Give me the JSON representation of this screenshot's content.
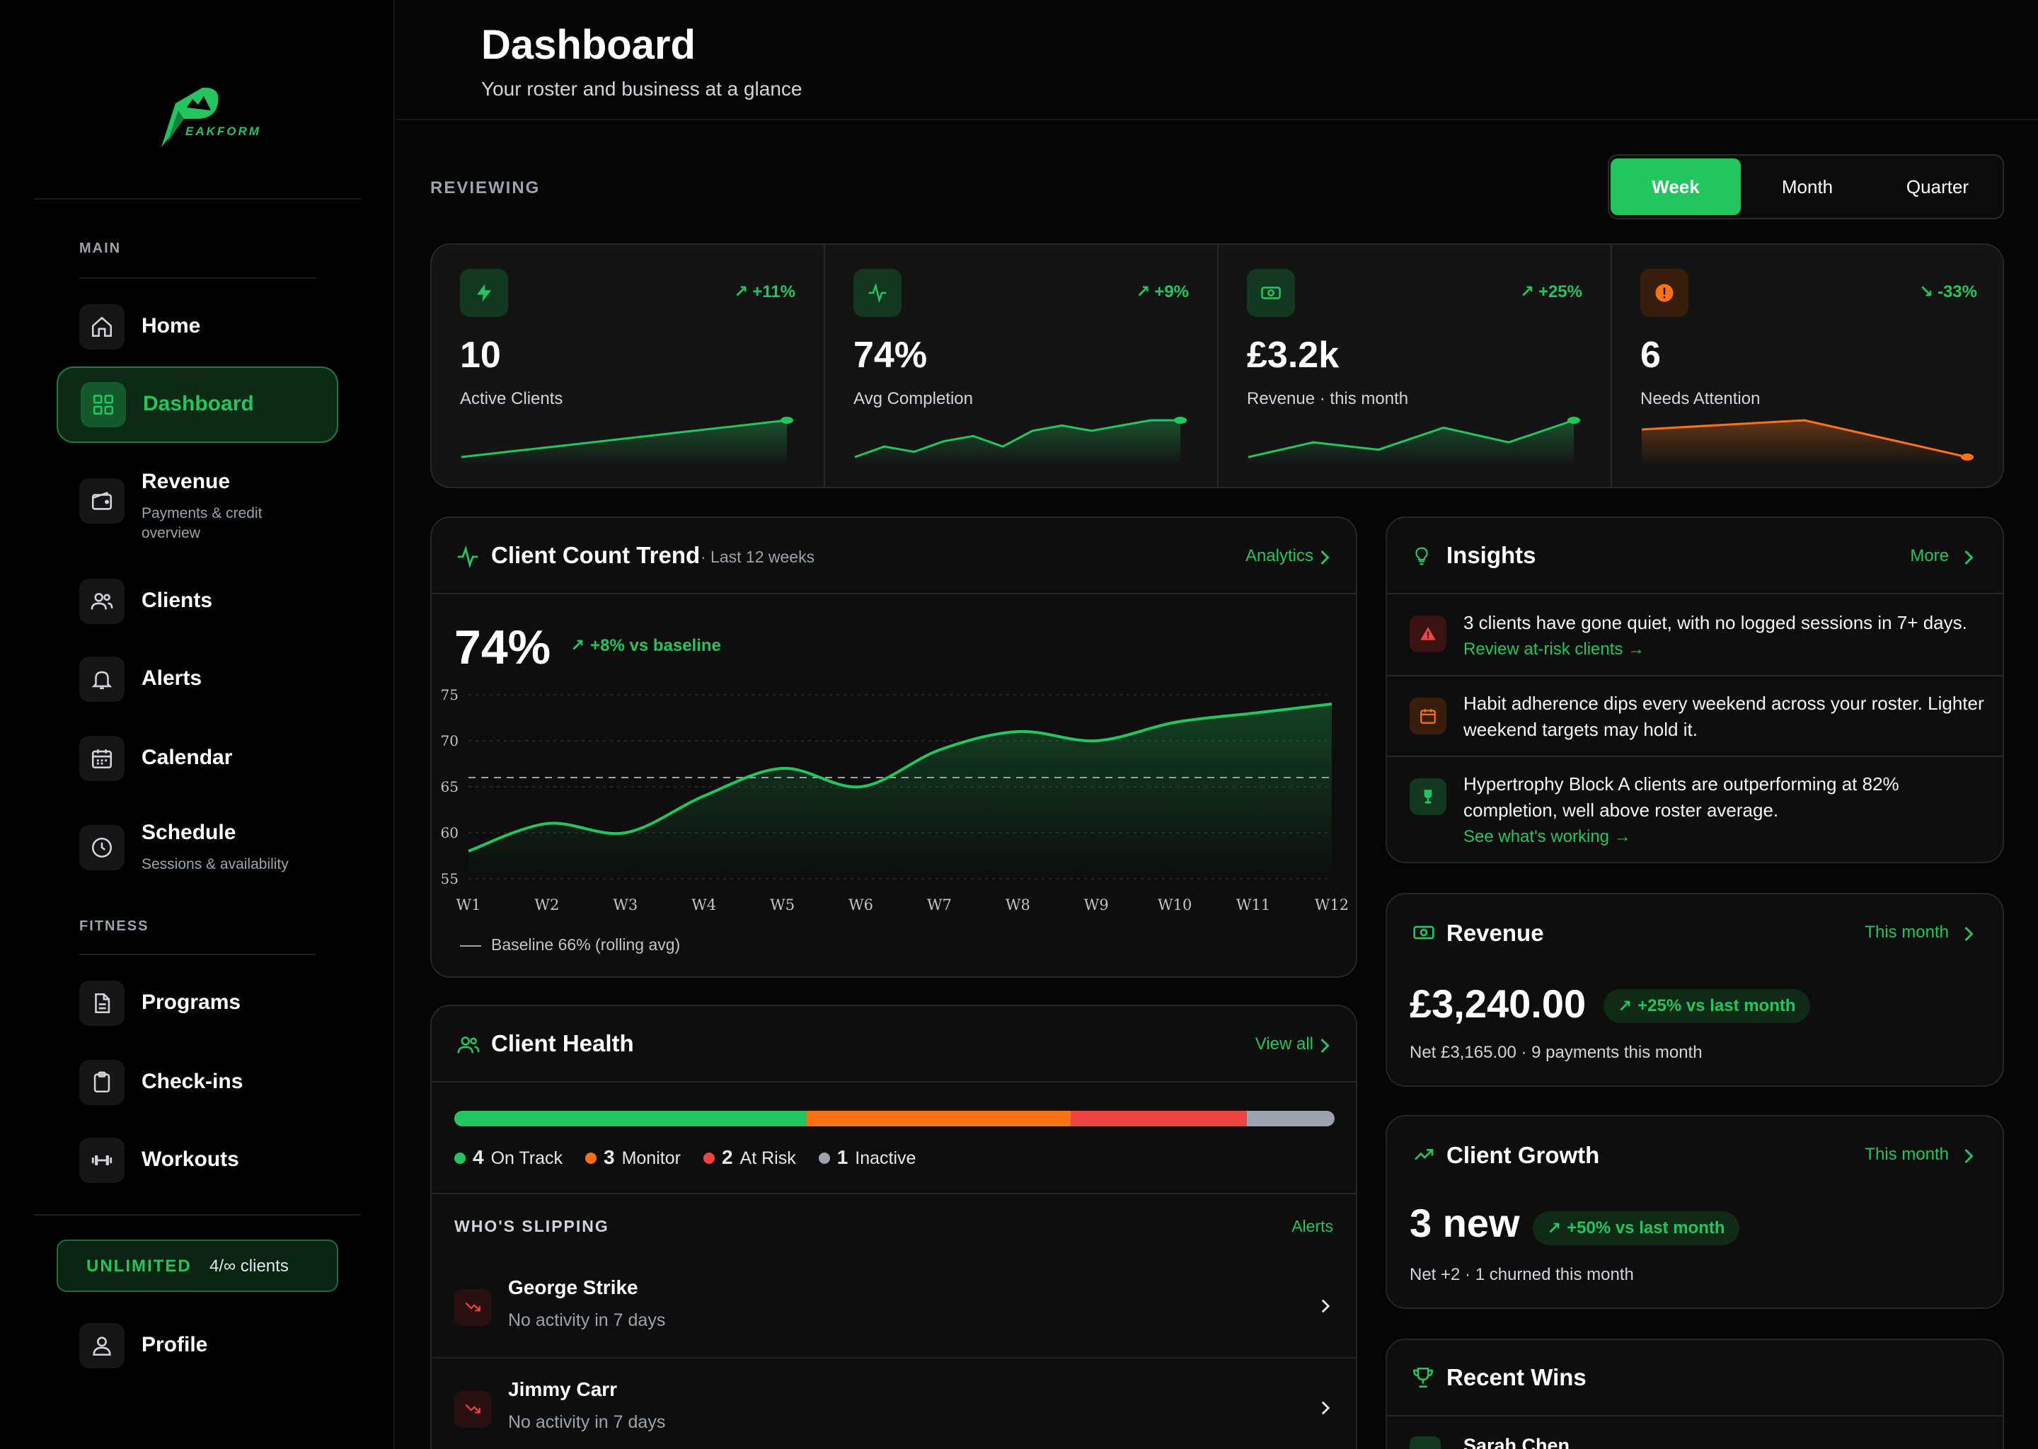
{
  "brand": {
    "name": "EAKFORM",
    "color": "#22c55e"
  },
  "header": {
    "title": "Dashboard",
    "subtitle": "Your roster and business at a glance"
  },
  "sidebar": {
    "sections": [
      "MAIN",
      "FITNESS"
    ],
    "items": [
      {
        "label": "Home",
        "icon": "home-icon"
      },
      {
        "label": "Dashboard",
        "icon": "grid-icon",
        "active": true
      },
      {
        "label": "Revenue",
        "sub": "Payments & credit overview",
        "icon": "wallet-icon"
      },
      {
        "label": "Clients",
        "icon": "users-icon"
      },
      {
        "label": "Alerts",
        "icon": "bell-icon"
      },
      {
        "label": "Calendar",
        "icon": "calendar-icon"
      },
      {
        "label": "Schedule",
        "sub": "Sessions & availability",
        "icon": "clock-icon"
      },
      {
        "label": "Programs",
        "icon": "file-icon"
      },
      {
        "label": "Check-ins",
        "icon": "clipboard-icon"
      },
      {
        "label": "Workouts",
        "icon": "dumbbell-icon"
      }
    ],
    "plan": {
      "name": "UNLIMITED",
      "count": "4/∞ clients"
    },
    "profile": "Profile"
  },
  "reviewing": {
    "label": "REVIEWING",
    "periods": [
      "Week",
      "Month",
      "Quarter"
    ],
    "selected": "Week"
  },
  "stats": [
    {
      "value": "10",
      "label": "Active Clients",
      "delta": "+11%",
      "trend": "up",
      "icon": "bolt-icon",
      "spark": [
        1,
        2,
        3,
        4,
        5,
        6,
        7
      ]
    },
    {
      "value": "74%",
      "label": "Avg Completion",
      "delta": "+9%",
      "trend": "up",
      "icon": "pulse-icon",
      "spark": [
        1,
        3,
        2,
        4,
        5,
        3,
        6,
        7,
        6,
        7,
        8,
        8
      ]
    },
    {
      "value": "£3.2k",
      "label": "Revenue · this month",
      "delta": "+25%",
      "trend": "up",
      "icon": "cash-icon",
      "spark": [
        1,
        3,
        2,
        5,
        3,
        6
      ]
    },
    {
      "value": "6",
      "label": "Needs Attention",
      "delta": "-33%",
      "trend": "down",
      "icon": "alert-icon",
      "spark": [
        8,
        9,
        10,
        6,
        2
      ]
    }
  ],
  "trend": {
    "title": "Client Count Trend",
    "range": "· Last 12 weeks",
    "link": "Analytics",
    "value": "74%",
    "delta": "+8% vs baseline",
    "baseline_label": "Baseline 66% (rolling avg)"
  },
  "chart_data": {
    "type": "area",
    "categories": [
      "W1",
      "W2",
      "W3",
      "W4",
      "W5",
      "W6",
      "W7",
      "W8",
      "W9",
      "W10",
      "W11",
      "W12"
    ],
    "series": [
      {
        "values": [
          58,
          61,
          60,
          64,
          67,
          65,
          69,
          71,
          70,
          72,
          73,
          74
        ]
      }
    ],
    "baseline": 66,
    "yticks": [
      75,
      70,
      65,
      60,
      55
    ],
    "ylim": [
      55,
      75
    ]
  },
  "health": {
    "title": "Client Health",
    "link": "View all",
    "segments": [
      {
        "label": "On Track",
        "count": "4",
        "color": "#22c55e",
        "value": 4
      },
      {
        "label": "Monitor",
        "count": "3",
        "color": "#f97316",
        "value": 3
      },
      {
        "label": "At Risk",
        "count": "2",
        "color": "#ef4444",
        "value": 2
      },
      {
        "label": "Inactive",
        "count": "1",
        "color": "#9ca3af",
        "value": 1
      }
    ],
    "slipping_title": "WHO'S SLIPPING",
    "slipping_link": "Alerts",
    "slipping": [
      {
        "name": "George Strike",
        "note": "No activity in 7 days"
      },
      {
        "name": "Jimmy Carr",
        "note": "No activity in 7 days"
      }
    ]
  },
  "insights": {
    "title": "Insights",
    "link": "More",
    "items": [
      {
        "text": "3 clients have gone quiet, with no logged sessions in 7+ days.",
        "link": "Review at-risk clients →",
        "icon": "warning-icon"
      },
      {
        "text": "Habit adherence dips every weekend across your roster. Lighter weekend targets may hold it.",
        "icon": "calendar-icon"
      },
      {
        "text": "Hypertrophy Block A clients are outperforming at 82% completion, well above roster average.",
        "link": "See what's working →",
        "icon": "trophy-icon"
      }
    ]
  },
  "revenue": {
    "title": "Revenue",
    "link": "This month",
    "amount": "£3,240.00",
    "delta": "+25% vs last month",
    "sub": "Net £3,165.00 · 9 payments this month"
  },
  "growth": {
    "title": "Client Growth",
    "link": "This month",
    "value": "3 new",
    "delta": "+50% vs last month",
    "sub": "Net +2 · 1 churned this month"
  },
  "wins": {
    "title": "Recent Wins",
    "first_name": "Sarah Chen"
  }
}
